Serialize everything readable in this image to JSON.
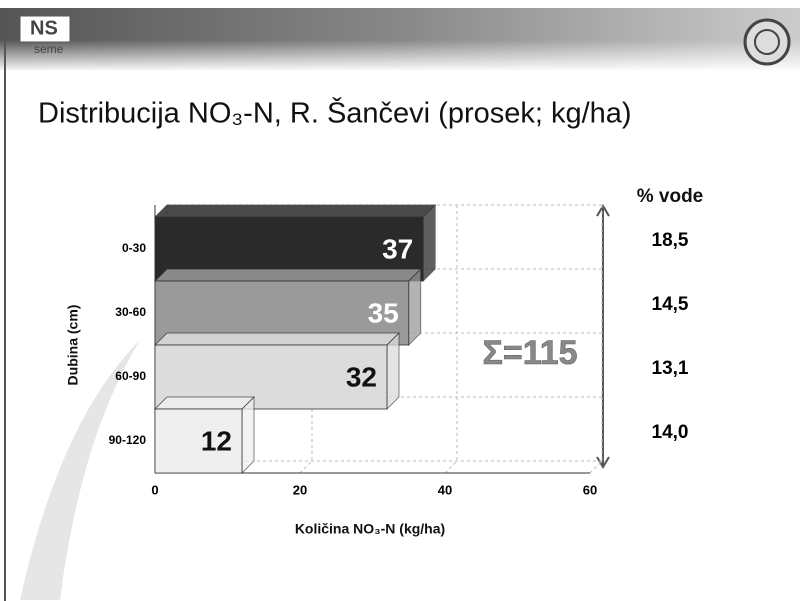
{
  "logo": [
    "NS",
    "seme"
  ],
  "chart_data": {
    "type": "bar3d",
    "title": "Distribucija NO₃-N, R. Šančevi (prosek; kg/ha)",
    "x_label": "Količina NO₃-N (kg/ha)",
    "y_label": "Dubina (cm)",
    "categories": [
      "0-30",
      "30-60",
      "60-90",
      "90-120"
    ],
    "values": [
      37,
      35,
      32,
      12
    ],
    "colors": [
      "#2a2a2a",
      "#9a9a9a",
      "#dcdcdc",
      "#efefef"
    ],
    "label_colors": [
      "#ffffff",
      "#ffffff",
      "#111111",
      "#111111"
    ],
    "xlim": [
      0,
      60
    ],
    "xticks": [
      0,
      20,
      40,
      60
    ],
    "annotation": "Σ=115",
    "water": {
      "title": "% vode",
      "values": [
        18.5,
        14.5,
        13.1,
        14.0
      ],
      "value_labels": [
        "18,5",
        "14,5",
        "13,1",
        "14,0"
      ]
    }
  }
}
